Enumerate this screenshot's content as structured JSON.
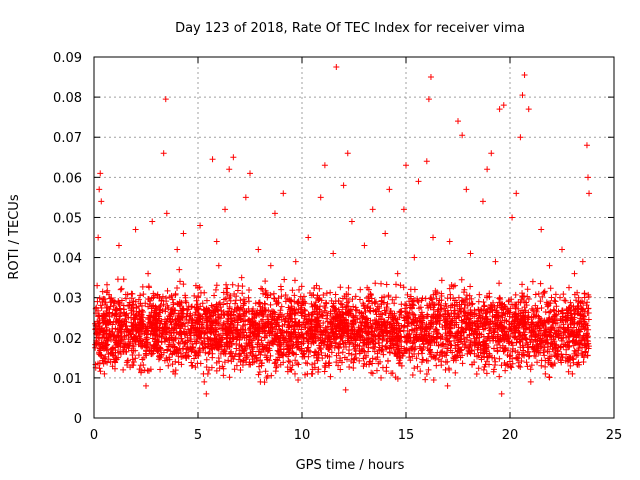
{
  "chart_data": {
    "type": "scatter",
    "title": "Day 123 of 2018, Rate Of TEC Index for receiver vima",
    "xlabel": "GPS time / hours",
    "ylabel": "ROTI / TECUs",
    "xlim": [
      0,
      25
    ],
    "ylim": [
      0,
      0.09
    ],
    "xticks": [
      0,
      5,
      10,
      15,
      20,
      25
    ],
    "xtick_labels": [
      "0",
      "5",
      "10",
      "15",
      "20",
      "25"
    ],
    "yticks": [
      0,
      0.01,
      0.02,
      0.03,
      0.04,
      0.05,
      0.06,
      0.07,
      0.08,
      0.09
    ],
    "ytick_labels": [
      "0",
      "0.01",
      "0.02",
      "0.03",
      "0.04",
      "0.05",
      "0.06",
      "0.07",
      "0.08",
      "0.09"
    ],
    "grid": true,
    "legend": "none",
    "marker": "plus",
    "series": [
      {
        "color": "#ff0000",
        "points": [
          [
            0.1,
            0.021
          ],
          [
            0.15,
            0.033
          ],
          [
            0.2,
            0.045
          ],
          [
            0.25,
            0.057
          ],
          [
            0.3,
            0.061
          ],
          [
            0.35,
            0.054
          ],
          [
            0.45,
            0.026
          ],
          [
            0.6,
            0.018
          ],
          [
            0.8,
            0.014
          ],
          [
            1.0,
            0.029
          ],
          [
            1.2,
            0.043
          ],
          [
            1.4,
            0.012
          ],
          [
            1.6,
            0.022
          ],
          [
            1.8,
            0.031
          ],
          [
            2.0,
            0.047
          ],
          [
            2.2,
            0.019
          ],
          [
            2.4,
            0.015
          ],
          [
            2.6,
            0.036
          ],
          [
            2.8,
            0.049
          ],
          [
            3.0,
            0.017
          ],
          [
            3.2,
            0.028
          ],
          [
            3.35,
            0.066
          ],
          [
            3.45,
            0.0795
          ],
          [
            3.5,
            0.051
          ],
          [
            3.7,
            0.024
          ],
          [
            3.9,
            0.011
          ],
          [
            4.1,
            0.037
          ],
          [
            4.3,
            0.046
          ],
          [
            4.5,
            0.02
          ],
          [
            4.7,
            0.013
          ],
          [
            4.9,
            0.033
          ],
          [
            5.1,
            0.048
          ],
          [
            5.3,
            0.009
          ],
          [
            5.5,
            0.027
          ],
          [
            5.7,
            0.0645
          ],
          [
            5.9,
            0.044
          ],
          [
            6.1,
            0.016
          ],
          [
            6.3,
            0.052
          ],
          [
            6.5,
            0.062
          ],
          [
            6.7,
            0.065
          ],
          [
            6.9,
            0.021
          ],
          [
            7.1,
            0.035
          ],
          [
            7.3,
            0.055
          ],
          [
            7.5,
            0.061
          ],
          [
            7.7,
            0.014
          ],
          [
            7.9,
            0.042
          ],
          [
            8.1,
            0.023
          ],
          [
            8.3,
            0.01
          ],
          [
            8.5,
            0.038
          ],
          [
            8.7,
            0.051
          ],
          [
            8.9,
            0.018
          ],
          [
            9.1,
            0.056
          ],
          [
            9.3,
            0.026
          ],
          [
            9.5,
            0.012
          ],
          [
            9.7,
            0.039
          ],
          [
            9.9,
            0.017
          ],
          [
            10.1,
            0.029
          ],
          [
            10.3,
            0.045
          ],
          [
            10.5,
            0.011
          ],
          [
            10.7,
            0.033
          ],
          [
            10.9,
            0.055
          ],
          [
            11.1,
            0.063
          ],
          [
            11.3,
            0.02
          ],
          [
            11.5,
            0.041
          ],
          [
            11.65,
            0.0875
          ],
          [
            11.8,
            0.024
          ],
          [
            12.0,
            0.058
          ],
          [
            12.2,
            0.066
          ],
          [
            12.4,
            0.049
          ],
          [
            12.6,
            0.015
          ],
          [
            12.8,
            0.032
          ],
          [
            13.0,
            0.043
          ],
          [
            13.2,
            0.019
          ],
          [
            13.4,
            0.052
          ],
          [
            13.6,
            0.027
          ],
          [
            13.8,
            0.01
          ],
          [
            14.0,
            0.046
          ],
          [
            14.2,
            0.057
          ],
          [
            14.4,
            0.022
          ],
          [
            14.6,
            0.036
          ],
          [
            14.8,
            0.013
          ],
          [
            15.0,
            0.063
          ],
          [
            15.2,
            0.028
          ],
          [
            15.4,
            0.04
          ],
          [
            15.6,
            0.059
          ],
          [
            15.8,
            0.017
          ],
          [
            16.0,
            0.064
          ],
          [
            16.1,
            0.0795
          ],
          [
            16.2,
            0.085
          ],
          [
            16.3,
            0.045
          ],
          [
            16.5,
            0.02
          ],
          [
            16.7,
            0.031
          ],
          [
            16.9,
            0.012
          ],
          [
            17.1,
            0.044
          ],
          [
            17.3,
            0.026
          ],
          [
            17.5,
            0.074
          ],
          [
            17.7,
            0.0705
          ],
          [
            17.9,
            0.057
          ],
          [
            18.1,
            0.041
          ],
          [
            18.3,
            0.018
          ],
          [
            18.5,
            0.029
          ],
          [
            18.7,
            0.054
          ],
          [
            18.9,
            0.062
          ],
          [
            19.1,
            0.066
          ],
          [
            19.3,
            0.039
          ],
          [
            19.5,
            0.077
          ],
          [
            19.7,
            0.078
          ],
          [
            19.9,
            0.013
          ],
          [
            20.1,
            0.05
          ],
          [
            20.3,
            0.056
          ],
          [
            20.5,
            0.07
          ],
          [
            20.6,
            0.0805
          ],
          [
            20.7,
            0.0855
          ],
          [
            20.9,
            0.077
          ],
          [
            21.1,
            0.034
          ],
          [
            21.3,
            0.023
          ],
          [
            21.5,
            0.047
          ],
          [
            21.7,
            0.011
          ],
          [
            21.9,
            0.038
          ],
          [
            22.1,
            0.027
          ],
          [
            22.3,
            0.016
          ],
          [
            22.5,
            0.042
          ],
          [
            22.7,
            0.02
          ],
          [
            22.9,
            0.013
          ],
          [
            23.1,
            0.036
          ],
          [
            23.3,
            0.029
          ],
          [
            23.5,
            0.039
          ],
          [
            23.7,
            0.068
          ],
          [
            23.75,
            0.06
          ],
          [
            23.8,
            0.056
          ],
          [
            0.5,
            0.011
          ],
          [
            2.5,
            0.008
          ],
          [
            5.4,
            0.006
          ],
          [
            8.0,
            0.009
          ],
          [
            12.1,
            0.007
          ],
          [
            19.6,
            0.006
          ],
          [
            21.0,
            0.009
          ],
          [
            23.0,
            0.011
          ],
          [
            10.8,
            0.015
          ],
          [
            14.9,
            0.052
          ],
          [
            17.0,
            0.008
          ],
          [
            4.0,
            0.042
          ],
          [
            6.0,
            0.038
          ],
          [
            9.0,
            0.032
          ]
        ]
      }
    ]
  }
}
